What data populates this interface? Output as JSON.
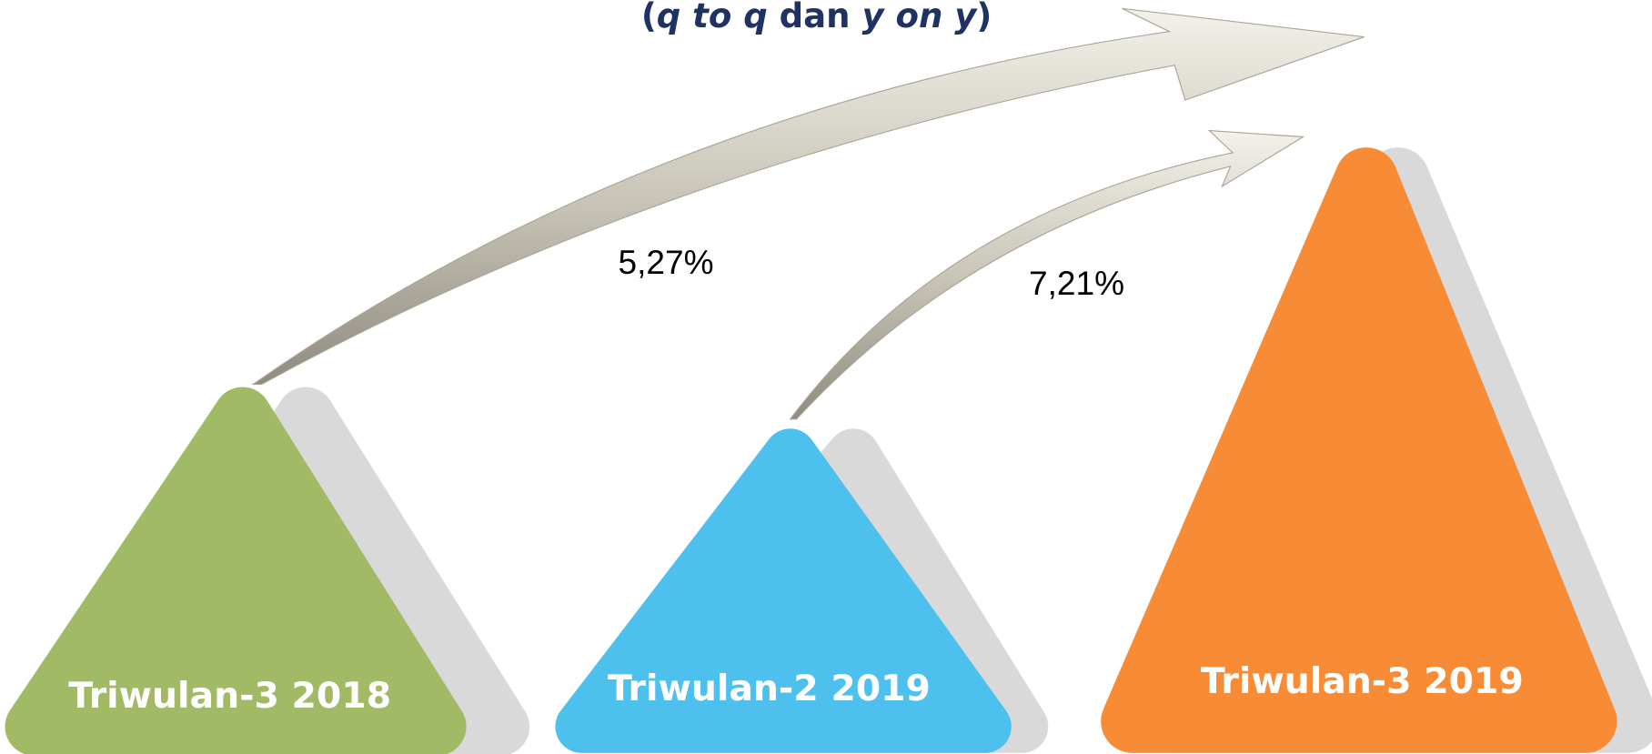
{
  "title": [
    "(",
    "q to q",
    " dan ",
    "y on y",
    ")"
  ],
  "arrows": [
    {
      "label": "5,27%"
    },
    {
      "label": "7,21%"
    }
  ],
  "nodes": [
    {
      "label": "Triwulan-3 2018"
    },
    {
      "label": "Triwulan-2 2019"
    },
    {
      "label": "Triwulan-3 2019"
    }
  ]
}
